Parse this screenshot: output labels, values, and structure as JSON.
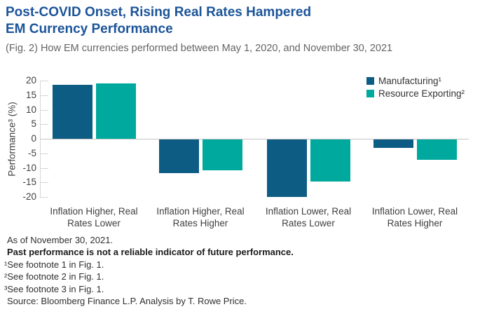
{
  "title": {
    "line1": "Post-COVID Onset, Rising Real Rates Hampered",
    "line2": "EM Currency Performance"
  },
  "subtitle": "(Fig. 2) How EM currencies performed between May 1, 2020, and November 30, 2021",
  "chart_data": {
    "type": "bar",
    "title": "Post-COVID Onset, Rising Real Rates Hampered EM Currency Performance",
    "categories": [
      "Inflation Higher, Real Rates Lower",
      "Inflation Higher, Real Rates Higher",
      "Inflation Lower, Real Rates Lower",
      "Inflation Lower, Real Rates Higher"
    ],
    "series": [
      {
        "name": "Manufacturing¹",
        "color": "#0D5C84",
        "values": [
          18.5,
          -11.5,
          -19.8,
          -3
        ]
      },
      {
        "name": "Resource Exporting²",
        "color": "#00A99D",
        "values": [
          19,
          -10.5,
          -14.5,
          -7
        ]
      }
    ],
    "xlabel": "",
    "ylabel": "Performance³ (%)",
    "ylim": [
      -20,
      20
    ],
    "yticks": [
      20,
      15,
      10,
      5,
      0,
      -5,
      -10,
      -15,
      -20
    ],
    "grid": "zero-line-only",
    "legend_position": "top-right"
  },
  "footer": {
    "as_of": "As of November 30, 2021.",
    "past_performance": "Past performance is not a reliable indicator of future performance.",
    "footnotes": [
      "¹See footnote 1 in Fig. 1.",
      "²See footnote 2 in Fig. 1.",
      "³See footnote 3 in Fig. 1."
    ],
    "source": "Source: Bloomberg Finance L.P. Analysis by T. Rowe Price."
  },
  "colors": {
    "title": "#1B5499",
    "subtitle": "#646464",
    "text": "#404040",
    "footer_text": "#303030",
    "axis_line": "#D6D6D6",
    "zero_line": "#C4C4C4"
  }
}
